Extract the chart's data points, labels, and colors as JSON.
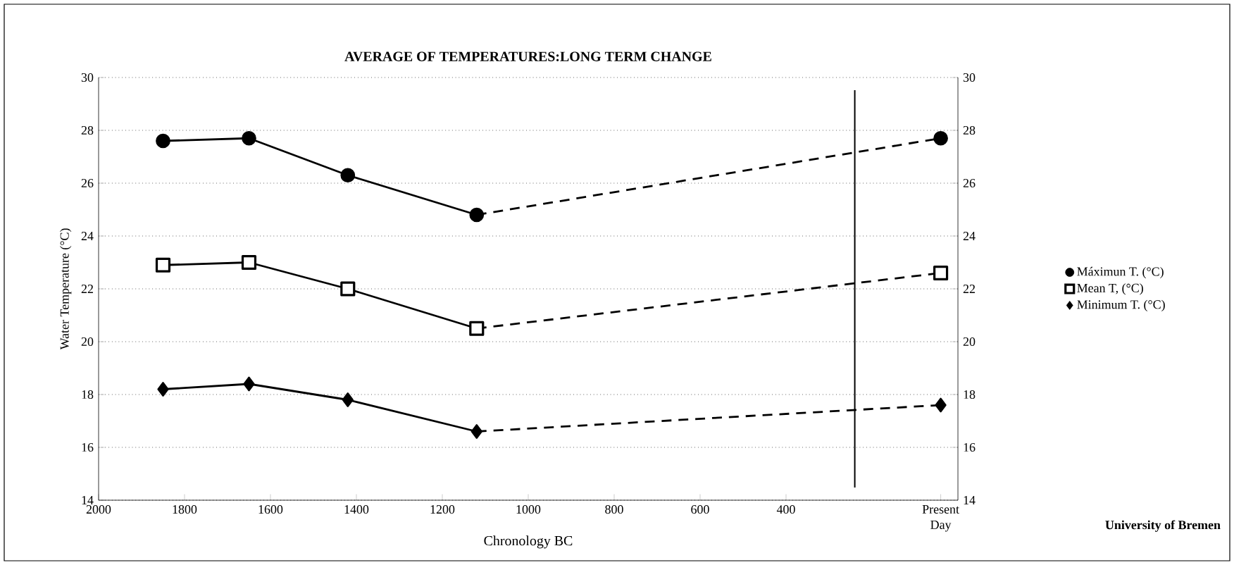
{
  "chart_data": {
    "type": "line",
    "title": "AVERAGE OF TEMPERATURES:LONG TERM CHANGE",
    "xlabel": "Chronology BC",
    "ylabel": "Water Temperature (°C)",
    "xlim": [
      2000,
      0
    ],
    "xticks": [
      2000,
      1800,
      1600,
      1400,
      1200,
      1000,
      800,
      600,
      400,
      {
        "value": 40,
        "label": "Present Day"
      }
    ],
    "ylim": [
      14,
      30
    ],
    "yticks": [
      14,
      16,
      18,
      20,
      22,
      24,
      26,
      28,
      30
    ],
    "y2lim": [
      14,
      30
    ],
    "y2ticks": [
      14,
      16,
      18,
      20,
      22,
      24,
      26,
      28,
      30
    ],
    "grid": "y",
    "legend": "right",
    "series": [
      {
        "name": "Máximun T. (°C)",
        "color": "#000000",
        "marker": "circle",
        "line_style": "solid",
        "x": [
          1850,
          1650,
          1420,
          1120
        ],
        "values": [
          27.6,
          27.7,
          26.3,
          24.8
        ]
      },
      {
        "name": "Mean T, (°C)",
        "color": "#000000",
        "marker": "square",
        "line_style": "solid",
        "x": [
          1850,
          1650,
          1420,
          1120
        ],
        "values": [
          22.9,
          23.0,
          22.0,
          20.5
        ]
      },
      {
        "name": "Minimum T. (°C)",
        "color": "#000000",
        "marker": "diamond",
        "line_style": "solid",
        "x": [
          1850,
          1650,
          1420,
          1120
        ],
        "values": [
          18.2,
          18.4,
          17.8,
          16.6
        ]
      },
      {
        "type": "line",
        "color": "#000000",
        "marker": "none",
        "line_style": "dashed",
        "x": [
          1120,
          40
        ],
        "values": [
          24.8,
          27.7
        ]
      },
      {
        "type": "line",
        "color": "#000000",
        "marker": "none",
        "line_style": "dashed",
        "x": [
          1120,
          40
        ],
        "values": [
          20.5,
          22.6
        ]
      },
      {
        "type": "line",
        "color": "#000000",
        "marker": "none",
        "line_style": "dashed",
        "x": [
          1120,
          40
        ],
        "values": [
          16.6,
          17.6
        ]
      },
      {
        "type": "scatter",
        "color": "#000000",
        "marker": "circle",
        "x": [
          40
        ],
        "values": [
          27.7
        ]
      },
      {
        "type": "scatter",
        "color": "#000000",
        "marker": "square",
        "x": [
          40
        ],
        "values": [
          22.6
        ]
      },
      {
        "type": "scatter",
        "color": "#000000",
        "marker": "diamond",
        "x": [
          40
        ],
        "values": [
          17.6
        ]
      }
    ],
    "ref_lines": [
      {
        "axis": "x",
        "value": 240,
        "color": "#000000",
        "line_style": "solid"
      }
    ],
    "annotations": [
      "University of Bremen"
    ]
  }
}
